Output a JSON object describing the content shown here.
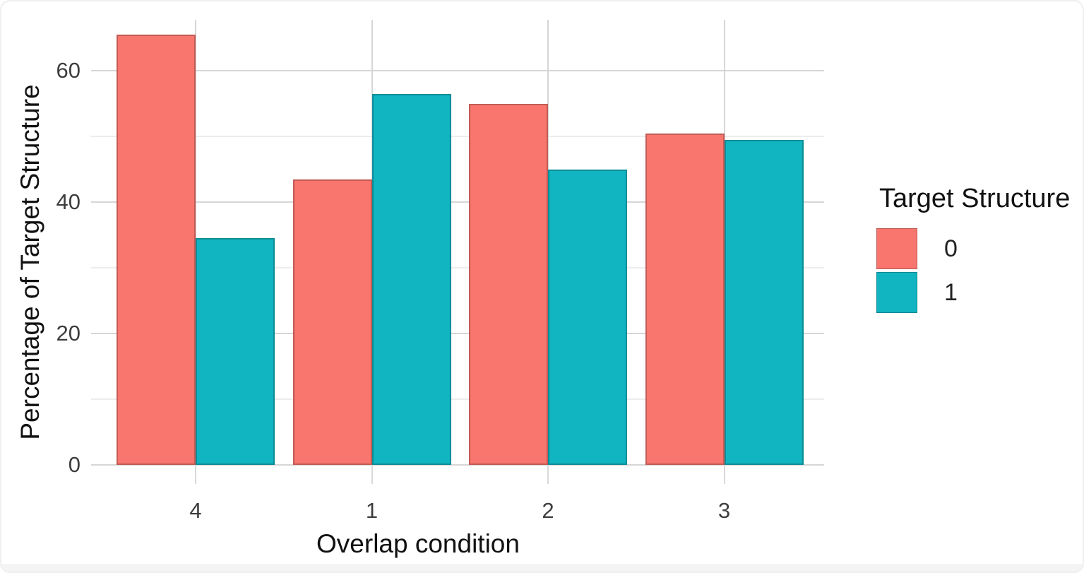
{
  "chart_data": {
    "type": "bar",
    "title": "",
    "xlabel": "Overlap condition",
    "ylabel": "Percentage of Target Structure",
    "categories": [
      "4",
      "1",
      "2",
      "3"
    ],
    "series": [
      {
        "name": "0",
        "color": "#F8766D",
        "edge_color": "#c25b55",
        "values": [
          65.5,
          43.5,
          55,
          50.5
        ]
      },
      {
        "name": "1",
        "color": "#10B5C1",
        "edge_color": "#0c8d97",
        "values": [
          34.5,
          56.5,
          45,
          49.5
        ]
      }
    ],
    "ylim": [
      0,
      68
    ],
    "yticks": [
      0,
      20,
      40,
      60
    ],
    "yticks_minor": [
      10,
      30,
      50
    ],
    "grid": {
      "major_color": "#d6d6d6",
      "minor_color": "#ececec",
      "vertical": "major gridline at each category center",
      "horizontal": "major at yticks, minor at yticks_minor"
    },
    "legend": {
      "title": "Target Structure",
      "position": "right"
    }
  }
}
